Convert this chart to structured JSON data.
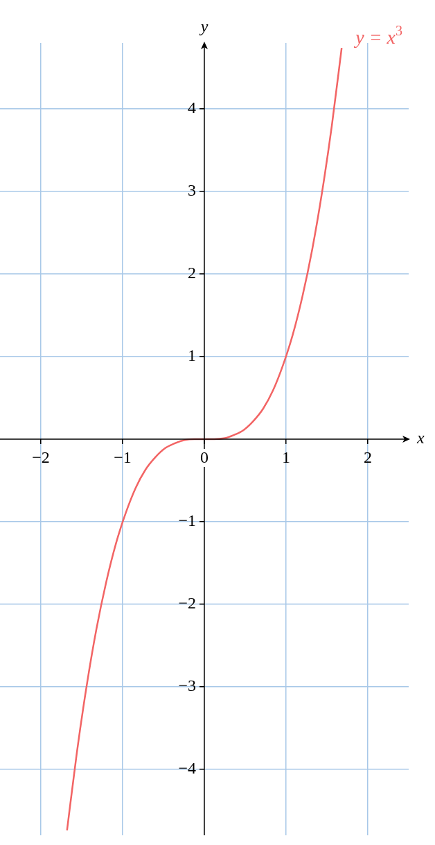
{
  "chart_data": {
    "type": "line",
    "xlabel": "x",
    "ylabel": "y",
    "xlim": [
      -2.5,
      2.5
    ],
    "ylim": [
      -4.8,
      4.8
    ],
    "xticks": [
      {
        "value": -2,
        "label": "−2"
      },
      {
        "value": -1,
        "label": "−1"
      },
      0,
      1,
      2
    ],
    "yticks": [
      {
        "value": -4,
        "label": "−4"
      },
      {
        "value": -3,
        "label": "−3"
      },
      {
        "value": -2,
        "label": "−2"
      },
      {
        "value": -1,
        "label": "−1"
      },
      1,
      2,
      3,
      4
    ],
    "grid": true,
    "legend": false,
    "marker": "none",
    "line_style": "solid",
    "series": [
      {
        "name": "y = x$^{3}$",
        "color": "#f26464",
        "x": [
          -1.68,
          -1.56,
          -1.44,
          -1.32,
          -1.2,
          -1.08,
          -0.96,
          -0.84,
          -0.72,
          -0.6,
          -0.48,
          -0.36,
          -0.24,
          -0.12,
          0,
          0.12,
          0.24,
          0.36,
          0.48,
          0.6,
          0.72,
          0.84,
          0.96,
          1.08,
          1.2,
          1.32,
          1.44,
          1.56,
          1.68
        ],
        "values": [
          -4.74,
          -3.8,
          -2.99,
          -2.3,
          -1.73,
          -1.26,
          -0.89,
          -0.59,
          -0.37,
          -0.22,
          -0.11,
          -0.05,
          -0.01,
          0,
          0,
          0,
          0.01,
          0.05,
          0.11,
          0.22,
          0.37,
          0.59,
          0.89,
          1.26,
          1.73,
          2.3,
          2.99,
          3.8,
          4.74
        ]
      }
    ]
  }
}
